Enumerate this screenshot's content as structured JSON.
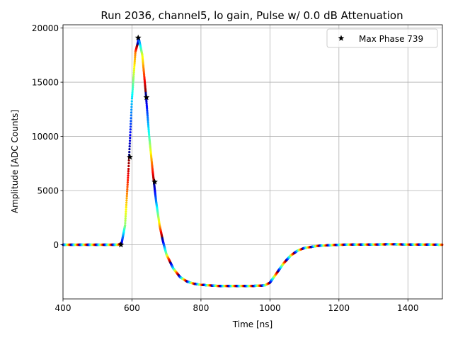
{
  "chart_data": {
    "type": "scatter",
    "title": "Run 2036, channel5, lo gain, Pulse w/ 0.0 dB Attenuation",
    "xlabel": "Time [ns]",
    "ylabel": "Amplitude [ADC Counts]",
    "xlim": [
      400,
      1500
    ],
    "ylim": [
      -5000,
      20300
    ],
    "xticks": [
      400,
      600,
      800,
      1000,
      1200,
      1400
    ],
    "yticks": [
      0,
      5000,
      10000,
      15000,
      20000
    ],
    "grid": true,
    "legend": {
      "position": "top-right",
      "label": "Max Phase 739",
      "marker": "star"
    },
    "colormap": "jet",
    "pulse_shape": [
      [
        400,
        0
      ],
      [
        560,
        0
      ],
      [
        570,
        150
      ],
      [
        580,
        1800
      ],
      [
        590,
        7000
      ],
      [
        600,
        13500
      ],
      [
        610,
        17800
      ],
      [
        620,
        19000
      ],
      [
        630,
        17500
      ],
      [
        640,
        14000
      ],
      [
        650,
        10000
      ],
      [
        660,
        6800
      ],
      [
        670,
        4000
      ],
      [
        680,
        1800
      ],
      [
        690,
        300
      ],
      [
        700,
        -900
      ],
      [
        720,
        -2200
      ],
      [
        740,
        -3000
      ],
      [
        760,
        -3400
      ],
      [
        780,
        -3600
      ],
      [
        800,
        -3700
      ],
      [
        850,
        -3800
      ],
      [
        900,
        -3800
      ],
      [
        950,
        -3800
      ],
      [
        985,
        -3750
      ],
      [
        1000,
        -3500
      ],
      [
        1020,
        -2600
      ],
      [
        1040,
        -1700
      ],
      [
        1060,
        -1000
      ],
      [
        1080,
        -550
      ],
      [
        1100,
        -300
      ],
      [
        1140,
        -100
      ],
      [
        1200,
        0
      ],
      [
        1350,
        40
      ],
      [
        1500,
        0
      ]
    ],
    "star_points": [
      {
        "x": 568,
        "y": 0
      },
      {
        "x": 594,
        "y": 8100
      },
      {
        "x": 618,
        "y": 19100
      },
      {
        "x": 642,
        "y": 13600
      },
      {
        "x": 666,
        "y": 5800
      }
    ]
  }
}
